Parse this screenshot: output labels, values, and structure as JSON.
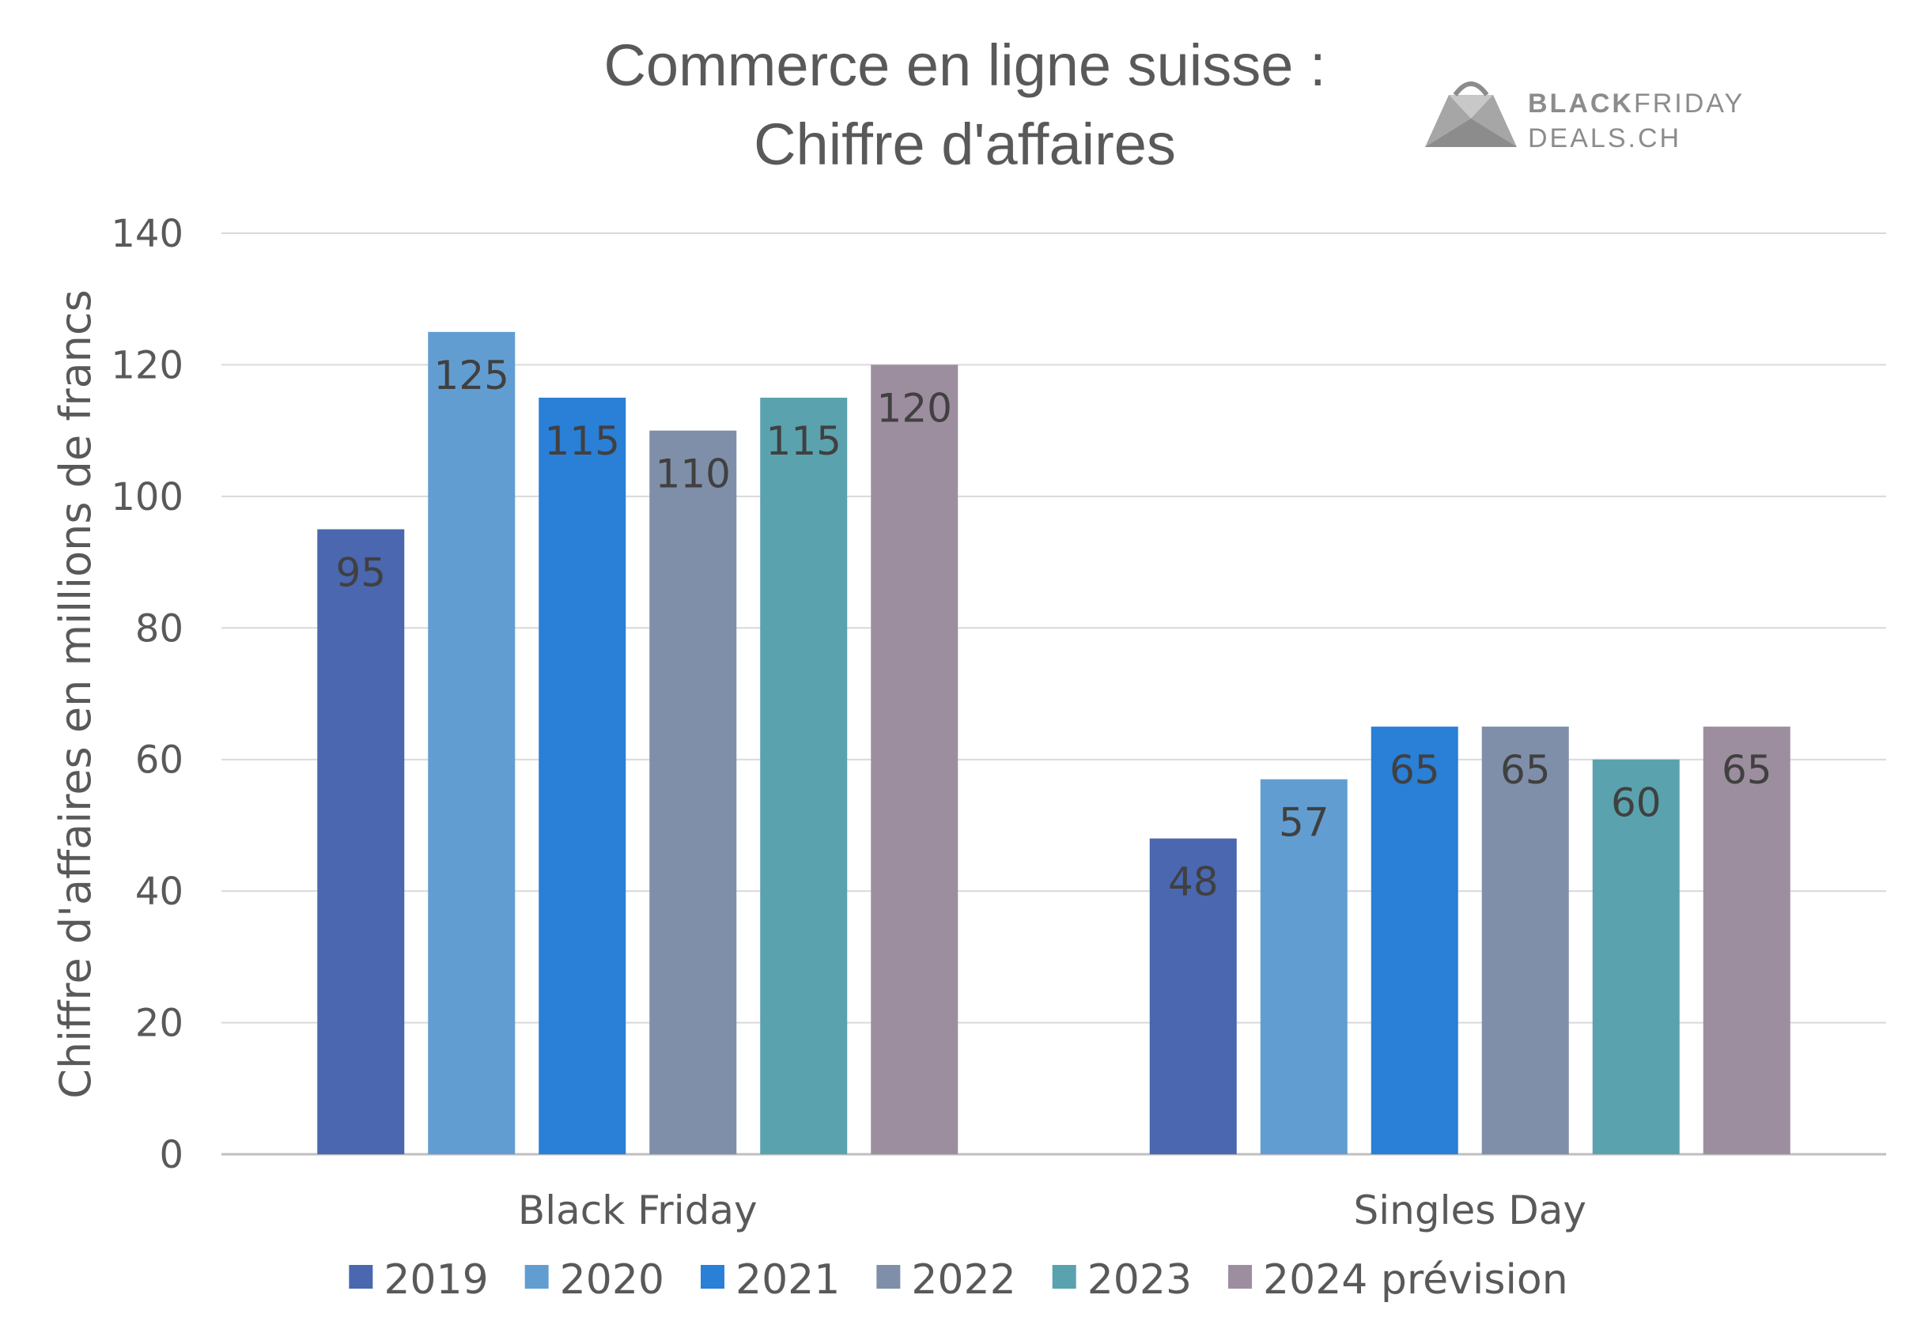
{
  "chart_data": {
    "type": "bar",
    "title_lines": [
      "Commerce en ligne suisse :",
      "Chiffre d'affaires"
    ],
    "xlabel": "",
    "ylabel": "Chiffre d'affaires en millions de francs",
    "ylim": [
      0,
      140
    ],
    "yticks": [
      0,
      20,
      40,
      60,
      80,
      100,
      120,
      140
    ],
    "grid": true,
    "legend_position": "bottom",
    "categories": [
      "Black Friday",
      "Singles Day"
    ],
    "series": [
      {
        "name": "2019",
        "values": [
          95,
          48
        ],
        "color": "#4a67b0"
      },
      {
        "name": "2020",
        "values": [
          125,
          57
        ],
        "color": "#629dd1"
      },
      {
        "name": "2021",
        "values": [
          115,
          65
        ],
        "color": "#2a7fd6"
      },
      {
        "name": "2022",
        "values": [
          110,
          65
        ],
        "color": "#7f8fa9"
      },
      {
        "name": "2023",
        "values": [
          115,
          60
        ],
        "color": "#5aa2ae"
      },
      {
        "name": "2024 prévision",
        "values": [
          120,
          65
        ],
        "color": "#9d8e9f"
      }
    ]
  },
  "logo": {
    "line1_bold": "BLACK",
    "line1_rest": "FRIDAY",
    "line2": "DEALS.CH"
  }
}
